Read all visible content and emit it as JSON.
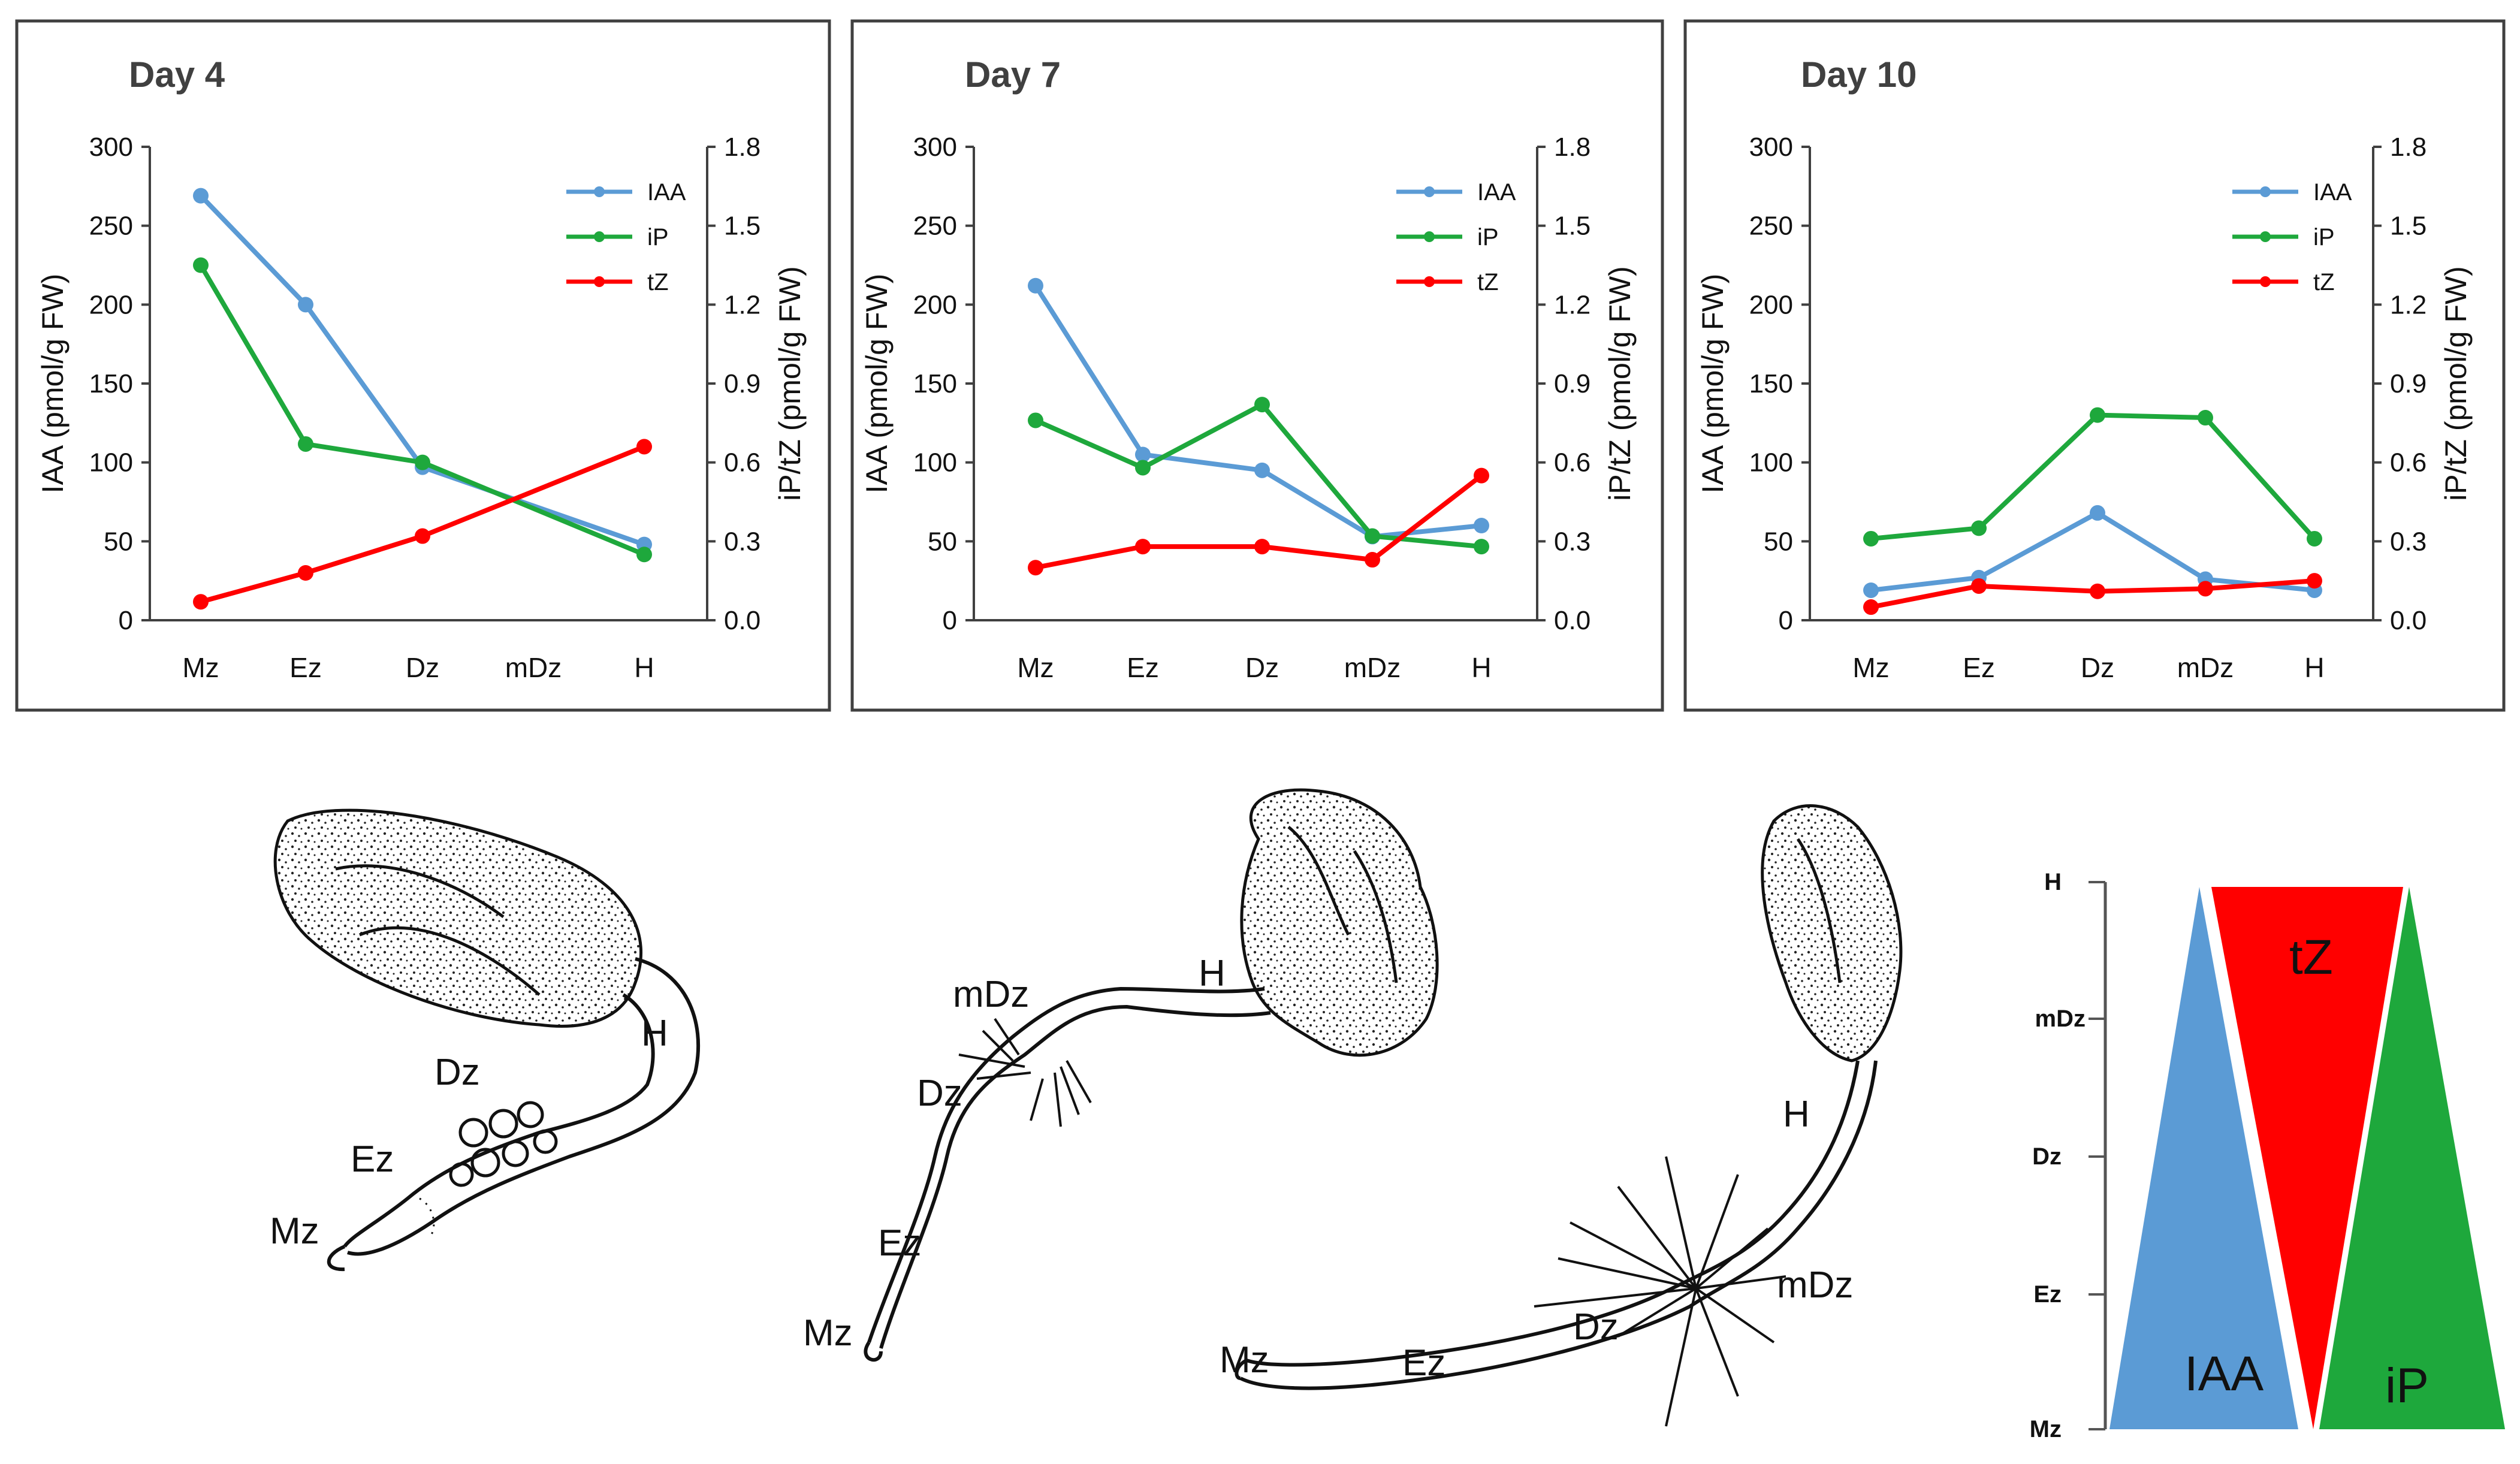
{
  "chart_data": [
    {
      "type": "line",
      "title": "Day 4",
      "categories": [
        "Mz",
        "Ez",
        "Dz",
        "mDz",
        "H"
      ],
      "ylabel": "IAA (pmol/g FW)",
      "y2label": "iP/tZ (pmol/g FW)",
      "ylim": [
        0,
        300
      ],
      "y2lim": [
        0,
        1.8
      ],
      "yticks": [
        "0",
        "50",
        "100",
        "150",
        "200",
        "250",
        "300"
      ],
      "y2ticks": [
        "0.0",
        "0.3",
        "0.6",
        "0.9",
        "1.2",
        "1.5",
        "1.8"
      ],
      "series": [
        {
          "name": "IAA",
          "axis": "left",
          "color": "#5b9bd5",
          "x": [
            "Mz",
            "Ez",
            "Dz",
            "H"
          ],
          "values": [
            269,
            200,
            97,
            48
          ]
        },
        {
          "name": "iP",
          "axis": "right",
          "color": "#1ea83c",
          "x": [
            "Mz",
            "Ez",
            "Dz",
            "H"
          ],
          "values": [
            1.35,
            0.67,
            0.6,
            0.25
          ]
        },
        {
          "name": "tZ",
          "axis": "right",
          "color": "#ff0000",
          "x": [
            "Mz",
            "Ez",
            "Dz",
            "H"
          ],
          "values": [
            0.07,
            0.18,
            0.32,
            0.66
          ]
        }
      ]
    },
    {
      "type": "line",
      "title": "Day 7",
      "categories": [
        "Mz",
        "Ez",
        "Dz",
        "mDz",
        "H"
      ],
      "ylabel": "IAA (pmol/g FW)",
      "y2label": "iP/tZ (pmol/g FW)",
      "ylim": [
        0,
        300
      ],
      "y2lim": [
        0,
        1.8
      ],
      "yticks": [
        "0",
        "50",
        "100",
        "150",
        "200",
        "250",
        "300"
      ],
      "y2ticks": [
        "0.0",
        "0.3",
        "0.6",
        "0.9",
        "1.2",
        "1.5",
        "1.8"
      ],
      "series": [
        {
          "name": "IAA",
          "axis": "left",
          "color": "#5b9bd5",
          "x": [
            "Mz",
            "Ez",
            "Dz",
            "mDz",
            "H"
          ],
          "values": [
            212,
            105,
            95,
            53,
            60
          ]
        },
        {
          "name": "iP",
          "axis": "right",
          "color": "#1ea83c",
          "x": [
            "Mz",
            "Ez",
            "Dz",
            "mDz",
            "H"
          ],
          "values": [
            0.76,
            0.58,
            0.82,
            0.32,
            0.28
          ]
        },
        {
          "name": "tZ",
          "axis": "right",
          "color": "#ff0000",
          "x": [
            "Mz",
            "Ez",
            "Dz",
            "mDz",
            "H"
          ],
          "values": [
            0.2,
            0.28,
            0.28,
            0.23,
            0.55
          ]
        }
      ]
    },
    {
      "type": "line",
      "title": "Day 10",
      "categories": [
        "Mz",
        "Ez",
        "Dz",
        "mDz",
        "H"
      ],
      "ylabel": "IAA (pmol/g FW)",
      "y2label": "iP/tZ (pmol/g FW)",
      "ylim": [
        0,
        300
      ],
      "y2lim": [
        0,
        1.8
      ],
      "yticks": [
        "0",
        "50",
        "100",
        "150",
        "200",
        "250",
        "300"
      ],
      "y2ticks": [
        "0.0",
        "0.3",
        "0.6",
        "0.9",
        "1.2",
        "1.5",
        "1.8"
      ],
      "series": [
        {
          "name": "IAA",
          "axis": "left",
          "color": "#5b9bd5",
          "x": [
            "Mz",
            "Ez",
            "Dz",
            "mDz",
            "H"
          ],
          "values": [
            19,
            27,
            68,
            26,
            19
          ]
        },
        {
          "name": "iP",
          "axis": "right",
          "color": "#1ea83c",
          "x": [
            "Mz",
            "Ez",
            "Dz",
            "mDz",
            "H"
          ],
          "values": [
            0.31,
            0.35,
            0.78,
            0.77,
            0.31
          ]
        },
        {
          "name": "tZ",
          "axis": "right",
          "color": "#ff0000",
          "x": [
            "Mz",
            "Ez",
            "Dz",
            "mDz",
            "H"
          ],
          "values": [
            0.05,
            0.13,
            0.11,
            0.12,
            0.15
          ]
        }
      ]
    }
  ],
  "drawings": {
    "day4": {
      "labels": [
        "H",
        "Dz",
        "Ez",
        "Mz"
      ]
    },
    "day7": {
      "labels": [
        "mDz",
        "H",
        "Dz",
        "Ez",
        "Mz"
      ]
    },
    "day10": {
      "labels": [
        "H",
        "mDz",
        "Dz",
        "Ez",
        "Mz"
      ]
    }
  },
  "gradient_diagram": {
    "axis_labels": [
      "H",
      "mDz",
      "Dz",
      "Ez",
      "Mz"
    ],
    "wedges": [
      {
        "name": "IAA",
        "color": "#5b9bd5"
      },
      {
        "name": "tZ",
        "color": "#ff0000"
      },
      {
        "name": "iP",
        "color": "#1ea83c"
      }
    ]
  }
}
